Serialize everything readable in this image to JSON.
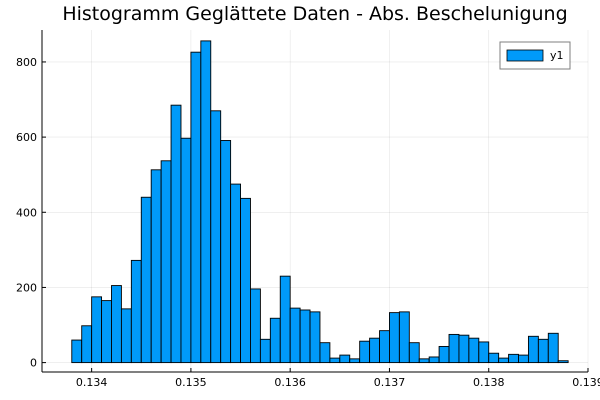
{
  "chart_data": {
    "type": "bar",
    "title": "Histogramm Geglättete Daten - Abs. Beschelunigung",
    "xlabel": "",
    "ylabel": "",
    "xlim": [
      0.1335,
      0.139
    ],
    "ylim": [
      -25,
      885
    ],
    "xticks": [
      0.134,
      0.135,
      0.136,
      0.137,
      0.138,
      0.139
    ],
    "xtick_labels": [
      "0.134",
      "0.135",
      "0.136",
      "0.137",
      "0.138",
      "0.139"
    ],
    "yticks": [
      0,
      200,
      400,
      600,
      800
    ],
    "ytick_labels": [
      "0",
      "200",
      "400",
      "600",
      "800"
    ],
    "bin_start": 0.1338,
    "bin_width": 0.0001,
    "series": [
      {
        "name": "y1",
        "color": "#009af9",
        "values": [
          60,
          98,
          175,
          165,
          205,
          143,
          272,
          440,
          513,
          537,
          685,
          597,
          826,
          856,
          670,
          591,
          475,
          437,
          196,
          62,
          118,
          230,
          145,
          140,
          135,
          53,
          12,
          20,
          10,
          57,
          65,
          85,
          133,
          135,
          53,
          10,
          15,
          43,
          75,
          73,
          65,
          55,
          25,
          12,
          22,
          20,
          70,
          62,
          78,
          5
        ]
      }
    ],
    "grid": true,
    "legend": "top-right"
  }
}
